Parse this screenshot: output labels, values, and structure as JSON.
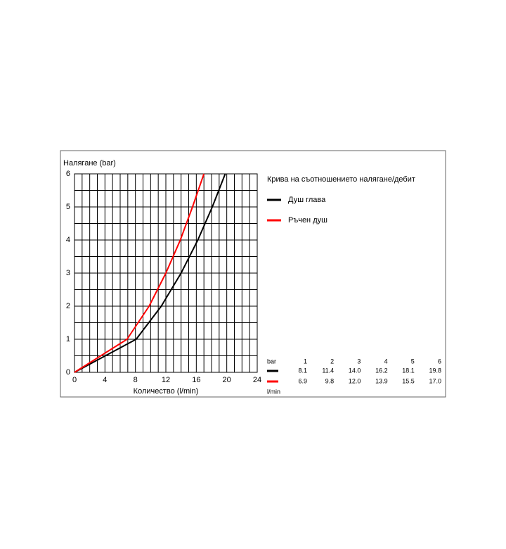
{
  "chart_data": {
    "type": "line",
    "title": "Крива на съотношението налягане/дебит",
    "y_label": "Налягане (bar)",
    "x_label": "Количество (l/min)",
    "xlim": [
      0,
      24
    ],
    "ylim": [
      0,
      6
    ],
    "xticks": [
      0,
      4,
      8,
      12,
      16,
      20,
      24
    ],
    "yticks": [
      0,
      1,
      2,
      3,
      4,
      5,
      6
    ],
    "grid": true,
    "series": [
      {
        "name": "Душ глава",
        "color": "#000000",
        "x": [
          0,
          8.1,
          11.4,
          14.0,
          16.2,
          18.1,
          19.8
        ],
        "x_labels": [
          null,
          "8.1",
          "11.4",
          "14.0",
          "16.2",
          "18.1",
          "19.8"
        ],
        "values": [
          0,
          1,
          2,
          3,
          4,
          5,
          6
        ]
      },
      {
        "name": "Ръчен душ",
        "color": "#ff0000",
        "x": [
          0,
          6.9,
          9.8,
          12.0,
          13.9,
          15.5,
          17.0
        ],
        "x_labels": [
          null,
          "6.9",
          "9.8",
          "12.0",
          "13.9",
          "15.5",
          "17.0"
        ],
        "values": [
          0,
          1,
          2,
          3,
          4,
          5,
          6
        ]
      }
    ],
    "table_header": "bar",
    "table_unit": "l/min"
  }
}
